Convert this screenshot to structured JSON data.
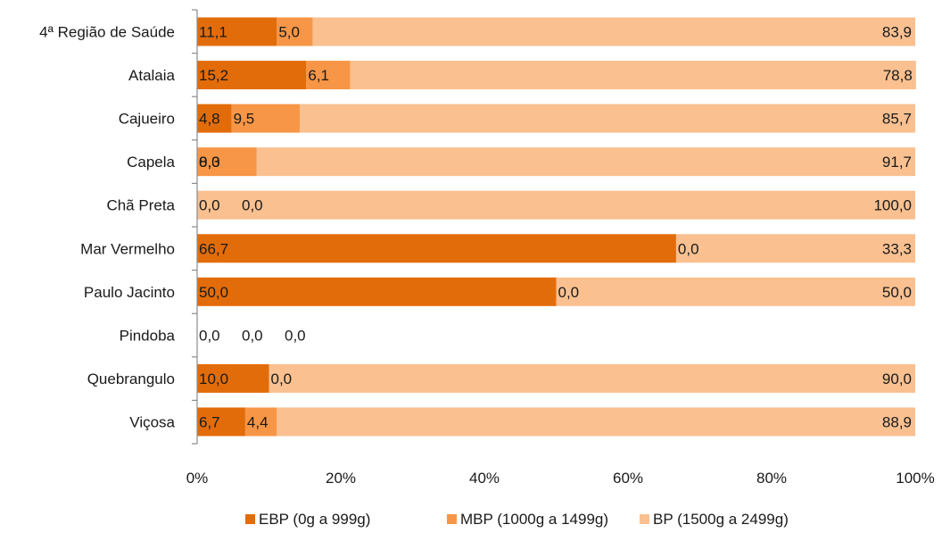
{
  "chart_data": {
    "type": "bar",
    "orientation": "horizontal",
    "stacked": "percent",
    "categories": [
      "4ª Região de Saúde",
      "Atalaia",
      "Cajueiro",
      "Capela",
      "Chã Preta",
      "Mar Vermelho",
      "Paulo Jacinto",
      "Pindoba",
      "Quebrangulo",
      "Viçosa"
    ],
    "series": [
      {
        "name": "EBP (0g a 999g)",
        "color": "#e36c0a",
        "values": [
          11.1,
          15.2,
          4.8,
          0.0,
          0.0,
          66.7,
          50.0,
          0.0,
          10.0,
          6.7
        ],
        "labels": [
          "11,1",
          "15,2",
          "4,8",
          "0,0",
          "0,0",
          "66,7",
          "50,0",
          "0,0",
          "10,0",
          "6,7"
        ]
      },
      {
        "name": "MBP (1000g a 1499g)",
        "color": "#f79646",
        "values": [
          5.0,
          6.1,
          9.5,
          8.3,
          0.0,
          0.0,
          0.0,
          0.0,
          0.0,
          4.4
        ],
        "labels": [
          "5,0",
          "6,1",
          "9,5",
          "8,3",
          "0,0",
          "0,0",
          "0,0",
          "0,0",
          "0,0",
          "4,4"
        ]
      },
      {
        "name": "BP (1500g a 2499g)",
        "color": "#fac090",
        "values": [
          83.9,
          78.8,
          85.7,
          91.7,
          100.0,
          33.3,
          50.0,
          0.0,
          90.0,
          88.9
        ],
        "labels": [
          "83,9",
          "78,8",
          "85,7",
          "91,7",
          "100,0",
          "33,3",
          "50,0",
          "0,0",
          "90,0",
          "88,9"
        ]
      }
    ],
    "x_ticks": [
      "0%",
      "20%",
      "40%",
      "60%",
      "80%",
      "100%"
    ],
    "xlim": [
      0,
      100
    ],
    "grid": false,
    "legend_position": "bottom",
    "title": "",
    "xlabel": "",
    "ylabel": ""
  }
}
